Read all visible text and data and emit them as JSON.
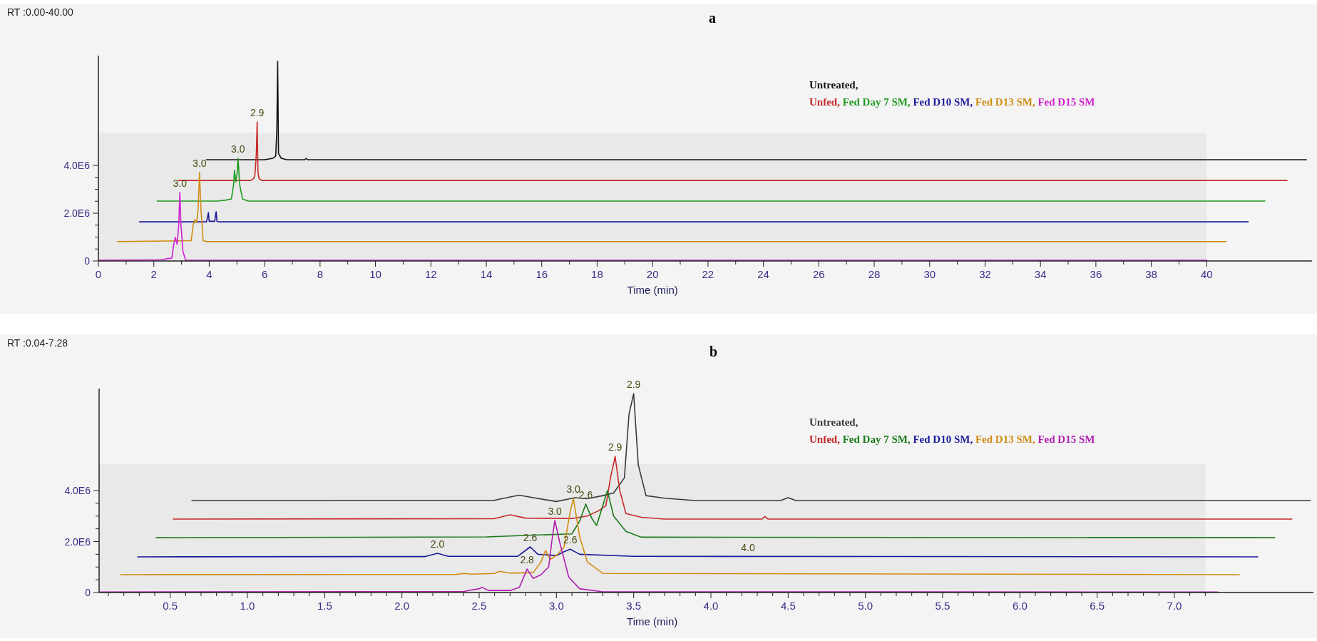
{
  "chart_data": [
    {
      "type": "line",
      "title": "a",
      "xlabel": "Time (min)",
      "legend": "top right",
      "marker": "none",
      "line_style": "solid",
      "grid": false,
      "annotations": [
        "RT :0.00-40.00",
        {
          "text": "2.9",
          "x": 5.73,
          "y": 5820000
        },
        {
          "text": "3.0",
          "x": 5.04,
          "y": 4300000
        },
        {
          "text": "3.0",
          "x": 3.65,
          "y": 3700000
        },
        {
          "text": "3.0",
          "x": 2.94,
          "y": 2870000
        }
      ],
      "xlim": [
        0,
        43.8
      ],
      "ylim": [
        0,
        8600000
      ],
      "xticks": [
        0,
        {
          "value": 1,
          "label": null
        },
        2,
        {
          "value": 3,
          "label": null
        },
        4,
        {
          "value": 5,
          "label": null
        },
        6,
        {
          "value": 7,
          "label": null
        },
        8,
        {
          "value": 9,
          "label": null
        },
        10,
        {
          "value": 11,
          "label": null
        },
        12,
        {
          "value": 13,
          "label": null
        },
        14,
        {
          "value": 15,
          "label": null
        },
        16,
        {
          "value": 17,
          "label": null
        },
        18,
        {
          "value": 19,
          "label": null
        },
        20,
        {
          "value": 21,
          "label": null
        },
        22,
        {
          "value": 23,
          "label": null
        },
        24,
        {
          "value": 25,
          "label": null
        },
        26,
        {
          "value": 27,
          "label": null
        },
        28,
        {
          "value": 29,
          "label": null
        },
        30,
        {
          "value": 31,
          "label": null
        },
        32,
        {
          "value": 33,
          "label": null
        },
        34,
        {
          "value": 35,
          "label": null
        },
        36,
        {
          "value": 37,
          "label": null
        },
        38,
        {
          "value": 39,
          "label": null
        },
        40
      ],
      "yticks": [
        0,
        {
          "value": 500000,
          "label": null
        },
        {
          "value": 1000000,
          "label": null
        },
        {
          "value": 1500000,
          "label": null
        },
        {
          "value": 2000000,
          "label": "2.0E6"
        },
        {
          "value": 2500000,
          "label": null
        },
        {
          "value": 3000000,
          "label": null
        },
        {
          "value": 3500000,
          "label": null
        },
        {
          "value": 4000000,
          "label": "4.0E6"
        }
      ],
      "series": [
        {
          "name": "Untreated,",
          "color": "#111111",
          "x": [
            3.9,
            6.0,
            6.3,
            6.4,
            6.44,
            6.47,
            6.5,
            6.6,
            6.8,
            7.45,
            7.5,
            7.55,
            43.6
          ],
          "values": [
            4240000,
            4240000,
            4300000,
            4400000,
            5500000,
            8360000,
            4500000,
            4300000,
            4240000,
            4240000,
            4300000,
            4240000,
            4240000
          ]
        },
        {
          "name": "Unfed,",
          "color": "#c62828",
          "x": [
            2.9,
            5.5,
            5.6,
            5.65,
            5.7,
            5.73,
            5.76,
            5.8,
            5.9,
            42.9
          ],
          "values": [
            3370000,
            3370000,
            3450000,
            3600000,
            4500000,
            5820000,
            3700000,
            3450000,
            3370000,
            3370000
          ]
        },
        {
          "name": "Fed Day 7 SM,",
          "color": "#1e9a1e",
          "x": [
            2.12,
            4.3,
            4.6,
            4.8,
            4.88,
            4.91,
            4.96,
            5.0,
            5.04,
            5.1,
            5.2,
            5.4,
            42.1
          ],
          "values": [
            2510000,
            2510000,
            2550000,
            2600000,
            3200000,
            3790000,
            3300000,
            3600000,
            4300000,
            3200000,
            2600000,
            2510000,
            2510000
          ]
        },
        {
          "name": "Fed D10 SM,",
          "color": "#1a1a9a",
          "x": [
            1.48,
            3.9,
            3.95,
            3.97,
            4.0,
            4.2,
            4.23,
            4.25,
            4.28,
            4.35,
            41.5
          ],
          "values": [
            1640000,
            1640000,
            1900000,
            2030000,
            1660000,
            1660000,
            1950000,
            2060000,
            1660000,
            1640000,
            1640000
          ]
        },
        {
          "name": "Fed D13 SM,",
          "color": "#d08c12",
          "x": [
            0.69,
            3.35,
            3.42,
            3.48,
            3.55,
            3.6,
            3.65,
            3.7,
            3.78,
            3.9,
            40.7
          ],
          "values": [
            810000,
            850000,
            1500000,
            1730000,
            1600000,
            2200000,
            3700000,
            2200000,
            850000,
            810000,
            810000
          ]
        },
        {
          "name": "Fed D15 SM",
          "color": "#d020d0",
          "x": [
            0,
            2.3,
            2.5,
            2.65,
            2.72,
            2.78,
            2.84,
            2.9,
            2.94,
            2.98,
            3.05,
            3.15,
            40
          ],
          "values": [
            30000,
            50000,
            100000,
            120000,
            700000,
            990000,
            700000,
            1500000,
            2870000,
            1500000,
            400000,
            30000,
            30000
          ]
        }
      ]
    },
    {
      "type": "line",
      "title": "b",
      "xlabel": "Time (min)",
      "legend": "top right",
      "marker": "none",
      "line_style": "solid",
      "grid": false,
      "annotations": [
        "RT :0.04-7.28",
        {
          "text": "2.9",
          "x": 3.5,
          "y": 7800000
        },
        {
          "text": "2.9",
          "x": 3.38,
          "y": 5340000
        },
        {
          "text": "3.0",
          "x": 3.11,
          "y": 3690000
        },
        {
          "text": "2.6",
          "x": 3.19,
          "y": 3470000
        },
        {
          "text": "3.0",
          "x": 2.99,
          "y": 2830000
        },
        {
          "text": "2.0",
          "x": 2.23,
          "y": 1540000
        },
        {
          "text": "2.6",
          "x": 2.83,
          "y": 1790000
        },
        {
          "text": "2.6",
          "x": 3.09,
          "y": 1700000
        },
        {
          "text": "2.8",
          "x": 2.81,
          "y": 920000
        },
        {
          "text": "4.0",
          "x": 4.24,
          "y": 1400000
        }
      ],
      "xlim": [
        0.04,
        7.9
      ],
      "ylim": [
        0,
        8000000
      ],
      "xticks": [
        {
          "value": 0.1,
          "label": null
        },
        {
          "value": 0.2,
          "label": null
        },
        {
          "value": 0.3,
          "label": null
        },
        {
          "value": 0.4,
          "label": null
        },
        0.5,
        {
          "value": 0.6,
          "label": null
        },
        {
          "value": 0.7,
          "label": null
        },
        {
          "value": 0.8,
          "label": null
        },
        {
          "value": 0.9,
          "label": null
        },
        {
          "value": 1,
          "label": "1.0"
        },
        {
          "value": 1.1,
          "label": null
        },
        {
          "value": 1.2,
          "label": null
        },
        {
          "value": 1.3,
          "label": null
        },
        {
          "value": 1.4,
          "label": null
        },
        1.5,
        {
          "value": 1.6,
          "label": null
        },
        {
          "value": 1.7,
          "label": null
        },
        {
          "value": 1.8,
          "label": null
        },
        {
          "value": 1.9,
          "label": null
        },
        {
          "value": 2,
          "label": "2.0"
        },
        {
          "value": 2.1,
          "label": null
        },
        {
          "value": 2.2,
          "label": null
        },
        {
          "value": 2.3,
          "label": null
        },
        {
          "value": 2.4,
          "label": null
        },
        2.5,
        {
          "value": 2.6,
          "label": null
        },
        {
          "value": 2.7,
          "label": null
        },
        {
          "value": 2.8,
          "label": null
        },
        {
          "value": 2.9,
          "label": null
        },
        {
          "value": 3,
          "label": "3.0"
        },
        {
          "value": 3.1,
          "label": null
        },
        {
          "value": 3.2,
          "label": null
        },
        {
          "value": 3.3,
          "label": null
        },
        {
          "value": 3.4,
          "label": null
        },
        3.5,
        {
          "value": 3.6,
          "label": null
        },
        {
          "value": 3.7,
          "label": null
        },
        {
          "value": 3.8,
          "label": null
        },
        {
          "value": 3.9,
          "label": null
        },
        {
          "value": 4,
          "label": "4.0"
        },
        {
          "value": 4.1,
          "label": null
        },
        {
          "value": 4.2,
          "label": null
        },
        {
          "value": 4.3,
          "label": null
        },
        {
          "value": 4.4,
          "label": null
        },
        4.5,
        {
          "value": 4.6,
          "label": null
        },
        {
          "value": 4.7,
          "label": null
        },
        {
          "value": 4.8,
          "label": null
        },
        {
          "value": 4.9,
          "label": null
        },
        {
          "value": 5,
          "label": "5.0"
        },
        {
          "value": 5.1,
          "label": null
        },
        {
          "value": 5.2,
          "label": null
        },
        {
          "value": 5.3,
          "label": null
        },
        {
          "value": 5.4,
          "label": null
        },
        5.5,
        {
          "value": 5.6,
          "label": null
        },
        {
          "value": 5.7,
          "label": null
        },
        {
          "value": 5.8,
          "label": null
        },
        {
          "value": 5.9,
          "label": null
        },
        {
          "value": 6,
          "label": "6.0"
        },
        {
          "value": 6.1,
          "label": null
        },
        {
          "value": 6.2,
          "label": null
        },
        {
          "value": 6.3,
          "label": null
        },
        {
          "value": 6.4,
          "label": null
        },
        6.5,
        {
          "value": 6.6,
          "label": null
        },
        {
          "value": 6.7,
          "label": null
        },
        {
          "value": 6.8,
          "label": null
        },
        {
          "value": 6.9,
          "label": null
        },
        {
          "value": 7,
          "label": "7.0"
        },
        {
          "value": 7.1,
          "label": null
        },
        {
          "value": 7.2,
          "label": null
        }
      ],
      "yticks": [
        0,
        {
          "value": 500000,
          "label": null
        },
        {
          "value": 1000000,
          "label": null
        },
        {
          "value": 1500000,
          "label": null
        },
        {
          "value": 2000000,
          "label": "2.0E6"
        },
        {
          "value": 2500000,
          "label": null
        },
        {
          "value": 3000000,
          "label": null
        },
        {
          "value": 3500000,
          "label": null
        },
        {
          "value": 4000000,
          "label": "4.0E6"
        }
      ],
      "series": [
        {
          "name": "Untreated,",
          "color": "#3a3a3a",
          "x": [
            0.64,
            2.6,
            2.7,
            2.76,
            2.85,
            3.0,
            3.12,
            3.2,
            3.3,
            3.37,
            3.44,
            3.47,
            3.5,
            3.53,
            3.58,
            3.7,
            3.9,
            4.45,
            4.5,
            4.55,
            7.88
          ],
          "values": [
            3610000,
            3620000,
            3750000,
            3820000,
            3720000,
            3570000,
            3720000,
            3680000,
            3800000,
            3900000,
            4500000,
            7000000,
            7800000,
            5000000,
            3800000,
            3700000,
            3610000,
            3610000,
            3720000,
            3610000,
            3610000
          ]
        },
        {
          "name": "Unfed,",
          "color": "#c62828",
          "x": [
            0.52,
            2.6,
            2.7,
            2.8,
            3.1,
            3.2,
            3.27,
            3.32,
            3.35,
            3.38,
            3.41,
            3.45,
            3.55,
            3.7,
            4.33,
            4.35,
            4.37,
            7.76
          ],
          "values": [
            2880000,
            2900000,
            3050000,
            2920000,
            2900000,
            3000000,
            3200000,
            3400000,
            4500000,
            5340000,
            4000000,
            3100000,
            2950000,
            2880000,
            2880000,
            2980000,
            2880000,
            2880000
          ]
        },
        {
          "name": "Fed Day 7 SM,",
          "color": "#1a7a1a",
          "x": [
            0.41,
            2.55,
            2.85,
            3.1,
            3.15,
            3.19,
            3.23,
            3.26,
            3.29,
            3.31,
            3.33,
            3.37,
            3.45,
            3.55,
            7.65
          ],
          "values": [
            2150000,
            2180000,
            2250000,
            2300000,
            2800000,
            3470000,
            2900000,
            2630000,
            3200000,
            3600000,
            4000000,
            3000000,
            2400000,
            2170000,
            2150000
          ]
        },
        {
          "name": "Fed D10 SM,",
          "color": "#1a1a9a",
          "x": [
            0.29,
            2.15,
            2.23,
            2.3,
            2.75,
            2.8,
            2.83,
            2.88,
            3.0,
            3.05,
            3.09,
            3.15,
            3.5,
            7.54
          ],
          "values": [
            1400000,
            1410000,
            1540000,
            1420000,
            1420000,
            1650000,
            1790000,
            1500000,
            1450000,
            1600000,
            1700000,
            1500000,
            1420000,
            1400000
          ]
        },
        {
          "name": "Fed D13 SM,",
          "color": "#d08c12",
          "x": [
            0.18,
            2.35,
            2.4,
            2.45,
            2.6,
            2.63,
            2.7,
            2.85,
            2.9,
            2.93,
            2.96,
            3.0,
            3.05,
            3.09,
            3.11,
            3.15,
            3.2,
            3.3,
            7.42
          ],
          "values": [
            700000,
            710000,
            750000,
            720000,
            750000,
            830000,
            760000,
            780000,
            1200000,
            1650000,
            1300000,
            1450000,
            1800000,
            3200000,
            3690000,
            2200000,
            1200000,
            750000,
            700000
          ]
        },
        {
          "name": "Fed D15 SM",
          "color": "#b01eb0",
          "x": [
            0.04,
            2.4,
            2.5,
            2.52,
            2.56,
            2.7,
            2.76,
            2.81,
            2.85,
            2.9,
            2.95,
            2.97,
            2.99,
            3.02,
            3.08,
            3.15,
            3.3,
            7.28
          ],
          "values": [
            20000,
            40000,
            150000,
            200000,
            80000,
            80000,
            200000,
            920000,
            550000,
            700000,
            1000000,
            2000000,
            2830000,
            2000000,
            600000,
            150000,
            30000,
            20000
          ]
        }
      ]
    }
  ]
}
